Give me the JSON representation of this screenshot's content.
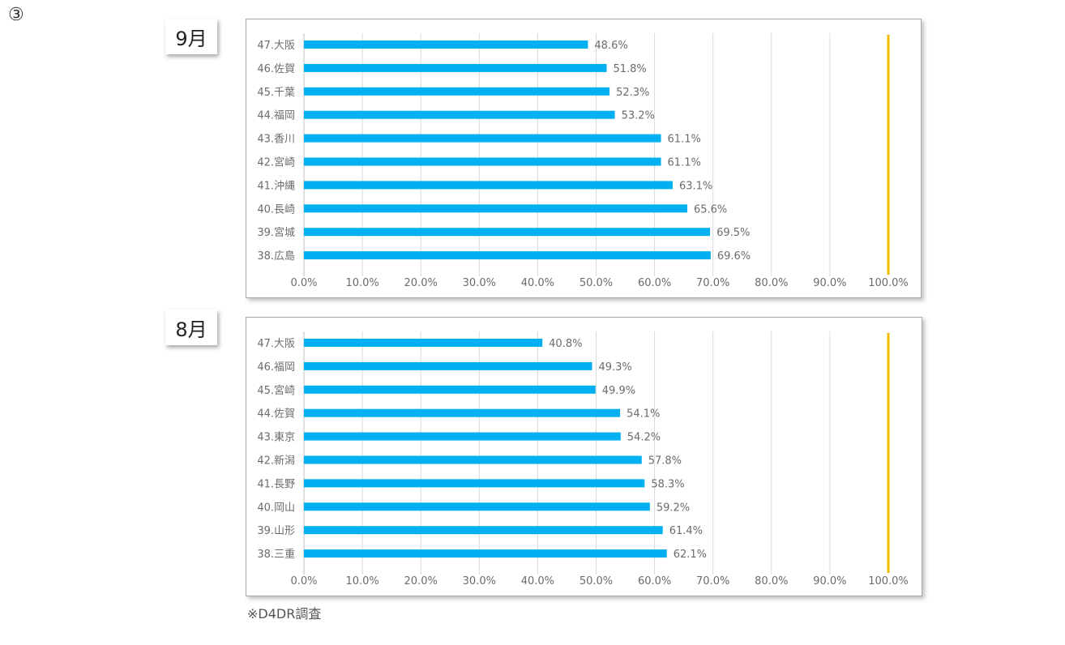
{
  "page": {
    "circled_number": "③",
    "footnote": "※D4DR調査"
  },
  "colors": {
    "bar": "#00b0f0",
    "reference_line": "#f5b800",
    "gridline": "#d9d9d9"
  },
  "chart_data": [
    {
      "type": "bar",
      "orientation": "horizontal",
      "panel_label": "9月",
      "categories": [
        "47.大阪",
        "46.佐賀",
        "45.千葉",
        "44.福岡",
        "43.香川",
        "42.宮崎",
        "41.沖縄",
        "40.長崎",
        "39.宮城",
        "38.広島"
      ],
      "values": [
        48.6,
        51.8,
        52.3,
        53.2,
        61.1,
        61.1,
        63.1,
        65.6,
        69.5,
        69.6
      ],
      "value_labels": [
        "48.6%",
        "51.8%",
        "52.3%",
        "53.2%",
        "61.1%",
        "61.1%",
        "63.1%",
        "65.6%",
        "69.5%",
        "69.6%"
      ],
      "xlim": [
        0,
        100
      ],
      "x_ticks": [
        "0.0%",
        "10.0%",
        "20.0%",
        "30.0%",
        "40.0%",
        "50.0%",
        "60.0%",
        "70.0%",
        "80.0%",
        "90.0%",
        "100.0%"
      ],
      "reference_line_value": 100,
      "grid": true,
      "title": "",
      "xlabel": "",
      "ylabel": ""
    },
    {
      "type": "bar",
      "orientation": "horizontal",
      "panel_label": "8月",
      "categories": [
        "47.大阪",
        "46.福岡",
        "45.宮崎",
        "44.佐賀",
        "43.東京",
        "42.新潟",
        "41.長野",
        "40.岡山",
        "39.山形",
        "38.三重"
      ],
      "values": [
        40.8,
        49.3,
        49.9,
        54.1,
        54.2,
        57.8,
        58.3,
        59.2,
        61.4,
        62.1
      ],
      "value_labels": [
        "40.8%",
        "49.3%",
        "49.9%",
        "54.1%",
        "54.2%",
        "57.8%",
        "58.3%",
        "59.2%",
        "61.4%",
        "62.1%"
      ],
      "xlim": [
        0,
        100
      ],
      "x_ticks": [
        "0.0%",
        "10.0%",
        "20.0%",
        "30.0%",
        "40.0%",
        "50.0%",
        "60.0%",
        "70.0%",
        "80.0%",
        "90.0%",
        "100.0%"
      ],
      "reference_line_value": 100,
      "grid": true,
      "title": "",
      "xlabel": "",
      "ylabel": ""
    }
  ]
}
